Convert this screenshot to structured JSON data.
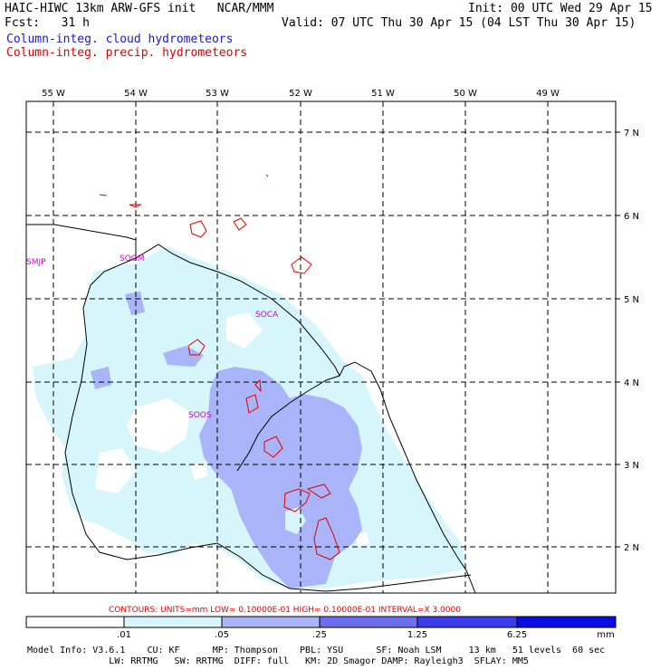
{
  "header": {
    "model_line": "HAIC-HIWC 13km ARW-GFS init   NCAR/MMM",
    "init_line": "Init: 00 UTC Wed 29 Apr 15",
    "fcst_line": "Fcst:   31 h",
    "valid_line": "Valid: 07 UTC Thu 30 Apr 15 (04 LST Thu 30 Apr 15)",
    "field1": "Column-integ. cloud hydrometeors",
    "field2": "Column-integ. precip. hydrometeors",
    "field1_color": "#1a1acc",
    "field2_color": "#e00000"
  },
  "map": {
    "lon_labels": [
      "55 W",
      "54 W",
      "53 W",
      "52 W",
      "51 W",
      "50 W",
      "49 W"
    ],
    "lat_labels": [
      "7 N",
      "6 N",
      "5 N",
      "4 N",
      "3 N",
      "2 N"
    ],
    "stations": [
      "SMJP",
      "SOGM",
      "SOCA",
      "SOOS"
    ],
    "station_color": "#cc00cc"
  },
  "contour_info": "CONTOURS:  UNITS=mm  LOW= 0.10000E-01  HIGH= 0.10000E-01  INTERVAL=X  3.0000",
  "colorbar": {
    "ticks": [
      ".01",
      ".05",
      ".25",
      "1.25",
      "6.25"
    ],
    "unit": "mm",
    "colors": [
      "#ffffff",
      "#d6f6fc",
      "#aab4f8",
      "#6e6ef0",
      "#3c3cec",
      "#0c0ce8"
    ]
  },
  "footer": {
    "line1": "Model Info: V3.6.1    CU: KF      MP: Thompson    PBL: YSU      SF: Noah LSM     13 km   51 levels  60 sec",
    "line2": "               LW: RRTMG   SW: RRTMG  DIFF: full   KM: 2D Smagor DAMP: Rayleigh3  SFLAY: MM5"
  }
}
